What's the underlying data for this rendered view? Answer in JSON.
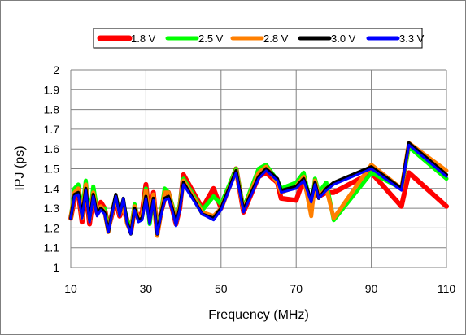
{
  "chart_data": {
    "type": "line",
    "xlabel": "Frequency (MHz)",
    "ylabel": "IPJ (ps)",
    "xlim": [
      10,
      110
    ],
    "ylim": [
      1,
      2
    ],
    "xticks": [
      10,
      30,
      50,
      70,
      90,
      110
    ],
    "yticks": [
      1,
      1.1,
      1.2,
      1.3,
      1.4,
      1.5,
      1.6,
      1.7,
      1.8,
      1.9,
      2
    ],
    "grid": true,
    "legend_position": "top",
    "series": [
      {
        "name": "1.8 V",
        "color": "#ff0000",
        "x": [
          10,
          11,
          12,
          13,
          14,
          15,
          16,
          17,
          18,
          19,
          20,
          21,
          22,
          23,
          24,
          25,
          26,
          27,
          28,
          29,
          30,
          31,
          32,
          33,
          34,
          35,
          36,
          37,
          38,
          39,
          40,
          45,
          48,
          50,
          54,
          56,
          60,
          62,
          65,
          66,
          70,
          72,
          74,
          75,
          76,
          78,
          80,
          90,
          98,
          100,
          110
        ],
        "y": [
          1.25,
          1.35,
          1.38,
          1.23,
          1.4,
          1.22,
          1.36,
          1.28,
          1.33,
          1.3,
          1.2,
          1.27,
          1.34,
          1.26,
          1.3,
          1.24,
          1.18,
          1.3,
          1.25,
          1.28,
          1.42,
          1.25,
          1.38,
          1.17,
          1.28,
          1.35,
          1.38,
          1.3,
          1.22,
          1.3,
          1.47,
          1.3,
          1.4,
          1.3,
          1.5,
          1.28,
          1.46,
          1.48,
          1.43,
          1.35,
          1.34,
          1.45,
          1.3,
          1.42,
          1.36,
          1.38,
          1.38,
          1.48,
          1.31,
          1.48,
          1.31
        ]
      },
      {
        "name": "2.5 V",
        "color": "#00ff00",
        "x": [
          10,
          11,
          12,
          13,
          14,
          15,
          16,
          17,
          18,
          19,
          20,
          21,
          22,
          23,
          24,
          25,
          26,
          27,
          28,
          29,
          30,
          31,
          32,
          33,
          34,
          35,
          36,
          37,
          38,
          39,
          40,
          45,
          48,
          50,
          54,
          56,
          60,
          62,
          65,
          66,
          70,
          72,
          74,
          75,
          76,
          78,
          80,
          90,
          98,
          100,
          110
        ],
        "y": [
          1.25,
          1.4,
          1.42,
          1.28,
          1.44,
          1.25,
          1.41,
          1.3,
          1.3,
          1.3,
          1.19,
          1.28,
          1.36,
          1.28,
          1.32,
          1.24,
          1.19,
          1.32,
          1.24,
          1.26,
          1.4,
          1.22,
          1.36,
          1.18,
          1.28,
          1.4,
          1.38,
          1.32,
          1.23,
          1.32,
          1.45,
          1.29,
          1.36,
          1.32,
          1.5,
          1.3,
          1.5,
          1.52,
          1.44,
          1.4,
          1.43,
          1.48,
          1.3,
          1.45,
          1.38,
          1.43,
          1.24,
          1.48,
          1.4,
          1.61,
          1.45
        ]
      },
      {
        "name": "2.8 V",
        "color": "#ff7f00",
        "x": [
          10,
          11,
          12,
          13,
          14,
          15,
          16,
          17,
          18,
          19,
          20,
          21,
          22,
          23,
          24,
          25,
          26,
          27,
          28,
          29,
          30,
          31,
          32,
          33,
          34,
          35,
          36,
          37,
          38,
          39,
          40,
          45,
          48,
          50,
          54,
          56,
          60,
          62,
          65,
          66,
          70,
          72,
          74,
          75,
          76,
          78,
          80,
          90,
          98,
          100,
          110
        ],
        "y": [
          1.25,
          1.38,
          1.4,
          1.25,
          1.42,
          1.24,
          1.38,
          1.28,
          1.31,
          1.28,
          1.18,
          1.28,
          1.36,
          1.27,
          1.31,
          1.22,
          1.18,
          1.31,
          1.25,
          1.26,
          1.39,
          1.24,
          1.37,
          1.16,
          1.27,
          1.38,
          1.38,
          1.31,
          1.22,
          1.31,
          1.44,
          1.28,
          1.26,
          1.3,
          1.49,
          1.29,
          1.48,
          1.51,
          1.43,
          1.38,
          1.41,
          1.46,
          1.26,
          1.44,
          1.36,
          1.4,
          1.25,
          1.52,
          1.4,
          1.63,
          1.49
        ]
      },
      {
        "name": "3.0 V",
        "color": "#000000",
        "x": [
          10,
          11,
          12,
          13,
          14,
          15,
          16,
          17,
          18,
          19,
          20,
          21,
          22,
          23,
          24,
          25,
          26,
          27,
          28,
          29,
          30,
          31,
          32,
          33,
          34,
          35,
          36,
          37,
          38,
          39,
          40,
          45,
          48,
          50,
          54,
          56,
          60,
          62,
          65,
          66,
          70,
          72,
          74,
          75,
          76,
          78,
          80,
          90,
          98,
          100,
          110
        ],
        "y": [
          1.25,
          1.37,
          1.38,
          1.26,
          1.4,
          1.24,
          1.37,
          1.27,
          1.3,
          1.28,
          1.18,
          1.28,
          1.37,
          1.27,
          1.35,
          1.23,
          1.17,
          1.3,
          1.24,
          1.25,
          1.36,
          1.23,
          1.35,
          1.17,
          1.27,
          1.35,
          1.36,
          1.3,
          1.22,
          1.3,
          1.43,
          1.27,
          1.25,
          1.3,
          1.49,
          1.29,
          1.46,
          1.5,
          1.45,
          1.39,
          1.41,
          1.45,
          1.34,
          1.43,
          1.35,
          1.4,
          1.43,
          1.51,
          1.4,
          1.63,
          1.47
        ]
      },
      {
        "name": "3.3 V",
        "color": "#0000ff",
        "x": [
          10,
          11,
          12,
          13,
          14,
          15,
          16,
          17,
          18,
          19,
          20,
          21,
          22,
          23,
          24,
          25,
          26,
          27,
          28,
          29,
          30,
          31,
          32,
          33,
          34,
          35,
          36,
          37,
          38,
          39,
          40,
          45,
          48,
          50,
          54,
          56,
          60,
          62,
          65,
          66,
          70,
          72,
          74,
          75,
          76,
          78,
          80,
          90,
          98,
          100,
          110
        ],
        "y": [
          1.25,
          1.36,
          1.37,
          1.25,
          1.39,
          1.23,
          1.36,
          1.26,
          1.29,
          1.27,
          1.18,
          1.27,
          1.36,
          1.26,
          1.35,
          1.22,
          1.17,
          1.29,
          1.23,
          1.24,
          1.35,
          1.22,
          1.34,
          1.17,
          1.26,
          1.34,
          1.35,
          1.29,
          1.21,
          1.29,
          1.42,
          1.27,
          1.24,
          1.29,
          1.48,
          1.28,
          1.45,
          1.49,
          1.44,
          1.38,
          1.4,
          1.44,
          1.33,
          1.42,
          1.35,
          1.39,
          1.42,
          1.5,
          1.39,
          1.62,
          1.46
        ]
      }
    ]
  }
}
